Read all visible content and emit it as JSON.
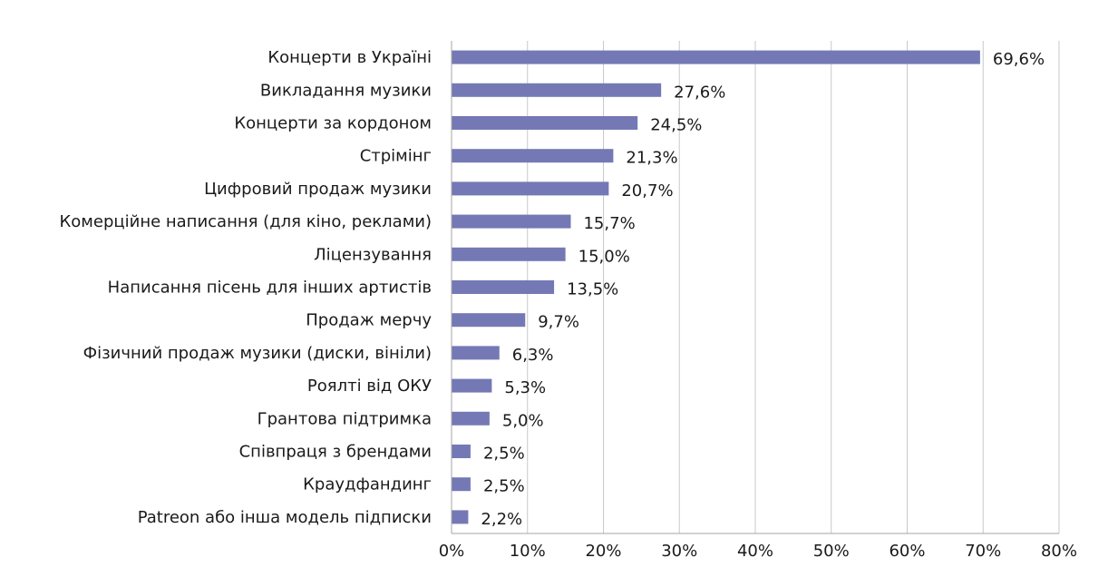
{
  "chart_data": {
    "type": "bar",
    "orientation": "horizontal",
    "title": "",
    "xlabel": "",
    "ylabel": "",
    "xlim": [
      0,
      80
    ],
    "x_ticks": [
      0,
      10,
      20,
      30,
      40,
      50,
      60,
      70,
      80
    ],
    "x_tick_labels": [
      "0%",
      "10%",
      "20%",
      "30%",
      "40%",
      "50%",
      "60%",
      "70%",
      "80%"
    ],
    "grid": "vertical",
    "legend": "none",
    "bar_color": "#7479b5",
    "categories": [
      "Концерти в Україні",
      "Викладання музики",
      "Концерти за кордоном",
      "Стрімінг",
      "Цифровий продаж музики",
      "Комерційне написання (для кіно, реклами)",
      "Ліцензування",
      "Написання пісень для інших артистів",
      "Продаж мерчу",
      "Фізичний продаж музики (диски, вініли)",
      "Роялті від ОКУ",
      "Грантова підтримка",
      "Співпраця з брендами",
      "Краудфандинг",
      "Patreon або інша модель підписки"
    ],
    "values": [
      69.6,
      27.6,
      24.5,
      21.3,
      20.7,
      15.7,
      15.0,
      13.5,
      9.7,
      6.3,
      5.3,
      5.0,
      2.5,
      2.5,
      2.2
    ],
    "value_labels": [
      "69,6%",
      "27,6%",
      "24,5%",
      "21,3%",
      "20,7%",
      "15,7%",
      "15,0%",
      "13,5%",
      "9,7%",
      "6,3%",
      "5,3%",
      "5,0%",
      "2,5%",
      "2,5%",
      "2,2%"
    ]
  }
}
